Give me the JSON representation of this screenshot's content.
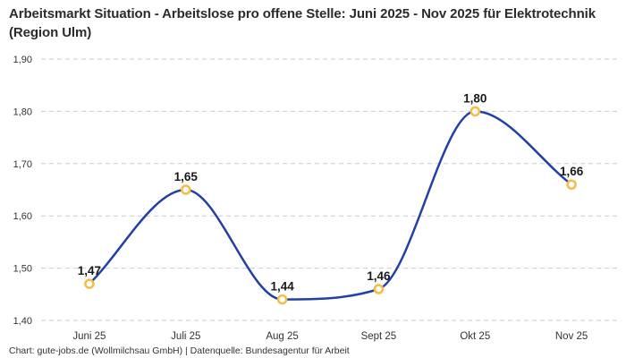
{
  "header": {
    "title": "Arbeitsmarkt Situation - Arbeitslose pro offene Stelle: Juni 2025 - Nov 2025 für Elektrotechnik (Region Ulm)"
  },
  "footer": {
    "credit": "Chart: gute-jobs.de (Wollmilchsau GmbH) | Datenquelle: Bundesagentur für Arbeit"
  },
  "chart_data": {
    "type": "line",
    "title": "Arbeitsmarkt Situation - Arbeitslose pro offene Stelle: Juni 2025 - Nov 2025 für Elektrotechnik (Region Ulm)",
    "xlabel": "",
    "ylabel": "",
    "categories": [
      "Juni 25",
      "Juli 25",
      "Aug 25",
      "Sept 25",
      "Okt 25",
      "Nov 25"
    ],
    "values": [
      1.47,
      1.65,
      1.44,
      1.46,
      1.8,
      1.66
    ],
    "point_labels": [
      "1,47",
      "1,65",
      "1,44",
      "1,46",
      "1,80",
      "1,66"
    ],
    "ylim": [
      1.4,
      1.9
    ],
    "yticks": [
      1.4,
      1.5,
      1.6,
      1.7,
      1.8,
      1.9
    ],
    "ytick_labels": [
      "1,40",
      "1,50",
      "1,60",
      "1,70",
      "1,80",
      "1,90"
    ],
    "grid": "horizontal-dashed",
    "legend": "none",
    "curve": "smooth-monotone",
    "colors": {
      "line": "#2340a5",
      "marker_stroke": "#f5bd42",
      "marker_fill": "#ffffff",
      "grid": "#cbcbcb",
      "point_label": "#1a1a1a",
      "axis_text": "#333333",
      "title": "#2b2b2b",
      "background": "#ffffff"
    }
  }
}
